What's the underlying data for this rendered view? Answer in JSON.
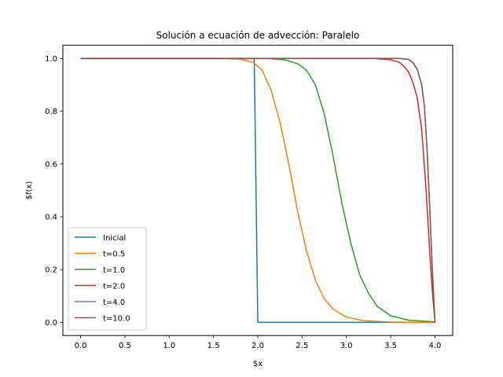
{
  "chart_data": {
    "type": "line",
    "title": "Solución a ecuación de advección: Paralelo",
    "xlabel": "$x",
    "ylabel": "$f(x)",
    "xlim": [
      -0.2,
      4.2
    ],
    "ylim": [
      -0.05,
      1.05
    ],
    "xticks": [
      "0.0",
      "0.5",
      "1.0",
      "1.5",
      "2.0",
      "2.5",
      "3.0",
      "3.5",
      "4.0"
    ],
    "yticks": [
      "0.0",
      "0.2",
      "0.4",
      "0.6",
      "0.8",
      "1.0"
    ],
    "grid": false,
    "legend_position": "lower-left",
    "series": [
      {
        "name": "Inicial",
        "color": "#1f77b4",
        "x": [
          0.0,
          1.96,
          2.0,
          4.0
        ],
        "y": [
          1.0,
          1.0,
          0.0,
          0.0
        ]
      },
      {
        "name": "t=0.5",
        "color": "#ff7f0e",
        "x": [
          0.0,
          1.6,
          1.8,
          1.95,
          2.05,
          2.15,
          2.25,
          2.35,
          2.45,
          2.55,
          2.65,
          2.75,
          2.85,
          3.0,
          3.2,
          3.5,
          4.0
        ],
        "y": [
          1.0,
          1.0,
          0.997,
          0.985,
          0.955,
          0.88,
          0.76,
          0.6,
          0.42,
          0.27,
          0.16,
          0.09,
          0.05,
          0.02,
          0.006,
          0.001,
          0.0
        ]
      },
      {
        "name": "t=1.0",
        "color": "#2ca02c",
        "x": [
          0.0,
          2.1,
          2.3,
          2.45,
          2.55,
          2.65,
          2.75,
          2.85,
          2.95,
          3.05,
          3.15,
          3.25,
          3.35,
          3.5,
          3.7,
          4.0
        ],
        "y": [
          1.0,
          1.0,
          0.995,
          0.98,
          0.955,
          0.9,
          0.79,
          0.63,
          0.45,
          0.3,
          0.18,
          0.11,
          0.06,
          0.025,
          0.008,
          0.002
        ]
      },
      {
        "name": "t=2.0",
        "color": "#d62728",
        "x": [
          0.0,
          3.3,
          3.5,
          3.6,
          3.65,
          3.7,
          3.75,
          3.8,
          3.85,
          3.9,
          3.94,
          3.97,
          4.0
        ],
        "y": [
          1.0,
          1.0,
          0.995,
          0.985,
          0.97,
          0.95,
          0.91,
          0.85,
          0.73,
          0.5,
          0.27,
          0.12,
          0.0
        ]
      },
      {
        "name": "t=4.0",
        "color": "#9467bd",
        "x": [
          0.0,
          3.6,
          3.7,
          3.75,
          3.8,
          3.85,
          3.88,
          3.91,
          3.94,
          3.97,
          4.0
        ],
        "y": [
          1.0,
          1.0,
          0.997,
          0.985,
          0.96,
          0.9,
          0.82,
          0.66,
          0.44,
          0.2,
          0.0
        ]
      },
      {
        "name": "t=10.0",
        "color": "#8c564b",
        "x": [
          0.0,
          3.6,
          3.7,
          3.75,
          3.8,
          3.85,
          3.88,
          3.91,
          3.94,
          3.97,
          4.0
        ],
        "y": [
          1.0,
          1.0,
          0.996,
          0.984,
          0.958,
          0.9,
          0.82,
          0.66,
          0.44,
          0.2,
          0.0
        ]
      }
    ]
  }
}
